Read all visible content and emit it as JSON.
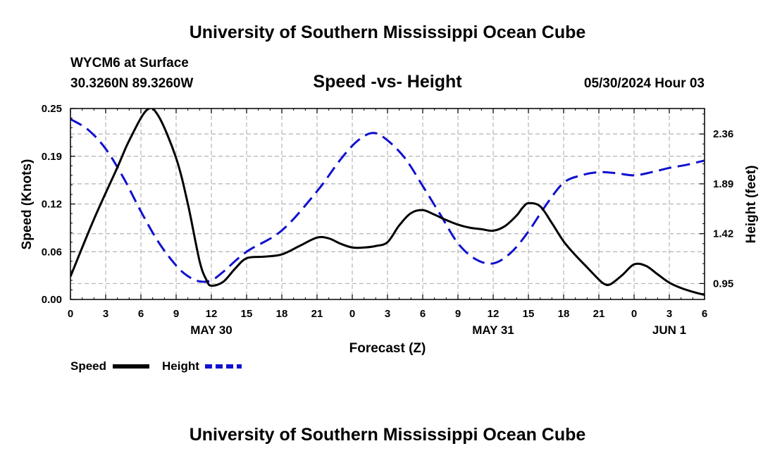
{
  "header": {
    "title": "University of Southern Mississippi Ocean Cube",
    "station": "WYCM6 at Surface",
    "coords": "30.3260N  89.3260W",
    "chart_title": "Speed -vs- Height",
    "timestamp": "05/30/2024 Hour 03",
    "footer_title": "University of Southern Mississippi Ocean Cube"
  },
  "chart_data": {
    "type": "line",
    "title": "Speed -vs- Height",
    "xlabel": "Forecast (Z)",
    "ylabel": "Speed (Knots)",
    "y2label": "Height (feet)",
    "ylim": [
      0,
      0.25
    ],
    "y2lim": [
      0.8,
      2.6
    ],
    "xlim": [
      0,
      54
    ],
    "y_ticks": [
      "0.00",
      "0.06",
      "0.12",
      "0.19",
      "0.25"
    ],
    "y_tick_values": [
      0,
      0.0625,
      0.125,
      0.1875,
      0.25
    ],
    "y2_ticks": [
      "0.95",
      "1.42",
      "1.89",
      "2.36"
    ],
    "y2_tick_values": [
      0.95,
      1.42,
      1.89,
      2.36
    ],
    "x_ticks": [
      "0",
      "3",
      "6",
      "9",
      "12",
      "15",
      "18",
      "21",
      "0",
      "3",
      "6",
      "9",
      "12",
      "15",
      "18",
      "21",
      "0",
      "3",
      "6"
    ],
    "x_tick_values": [
      0,
      3,
      6,
      9,
      12,
      15,
      18,
      21,
      24,
      27,
      30,
      33,
      36,
      39,
      42,
      45,
      48,
      51,
      54
    ],
    "date_labels": [
      {
        "label": "MAY 30",
        "x": 12
      },
      {
        "label": "MAY 31",
        "x": 36
      },
      {
        "label": "JUN 1",
        "x": 51
      }
    ],
    "grid": true,
    "series": [
      {
        "name": "Speed",
        "axis": "left",
        "color": "#000000",
        "style": "solid",
        "x": [
          0,
          2,
          4,
          5,
          6.5,
          7.5,
          9,
          10,
          11,
          11.6,
          12,
          13,
          14,
          15,
          16.5,
          18,
          19.5,
          21,
          22,
          23,
          24,
          25,
          26,
          27,
          28,
          29,
          30,
          31,
          32,
          33,
          34,
          35,
          36,
          37,
          38,
          38.5,
          39,
          40,
          41,
          42,
          43,
          44,
          45,
          45.5,
          46,
          47,
          48,
          49,
          50,
          51,
          52,
          53,
          54
        ],
        "values": [
          0.03,
          0.105,
          0.173,
          0.208,
          0.248,
          0.24,
          0.185,
          0.125,
          0.05,
          0.025,
          0.018,
          0.023,
          0.04,
          0.054,
          0.056,
          0.059,
          0.07,
          0.081,
          0.08,
          0.073,
          0.068,
          0.068,
          0.07,
          0.075,
          0.097,
          0.113,
          0.117,
          0.111,
          0.104,
          0.098,
          0.094,
          0.092,
          0.09,
          0.096,
          0.11,
          0.12,
          0.126,
          0.122,
          0.1,
          0.076,
          0.058,
          0.042,
          0.026,
          0.02,
          0.02,
          0.032,
          0.046,
          0.044,
          0.033,
          0.022,
          0.015,
          0.01,
          0.006
        ]
      },
      {
        "name": "Height",
        "axis": "right",
        "color": "#1010d0",
        "style": "dashed",
        "x": [
          0,
          1.5,
          3,
          4.5,
          6,
          7.5,
          9,
          10,
          11,
          12,
          13,
          15,
          18,
          21,
          23,
          24.5,
          25.8,
          27,
          28.5,
          30,
          31.5,
          33,
          34.5,
          36,
          37.5,
          39,
          40.5,
          42,
          43.5,
          45,
          46.5,
          48,
          49.5,
          51,
          52.5,
          54
        ],
        "values": [
          2.5,
          2.4,
          2.22,
          1.95,
          1.63,
          1.34,
          1.12,
          1.02,
          0.97,
          0.98,
          1.06,
          1.25,
          1.45,
          1.82,
          2.12,
          2.3,
          2.37,
          2.3,
          2.13,
          1.87,
          1.6,
          1.33,
          1.18,
          1.14,
          1.24,
          1.44,
          1.69,
          1.9,
          1.97,
          2.0,
          1.99,
          1.97,
          2.0,
          2.04,
          2.07,
          2.11
        ]
      }
    ]
  },
  "legend": {
    "speed_label": "Speed",
    "height_label": "Height"
  },
  "colors": {
    "speed": "#000000",
    "height": "#1010d0",
    "grid": "#b4b4b4"
  }
}
